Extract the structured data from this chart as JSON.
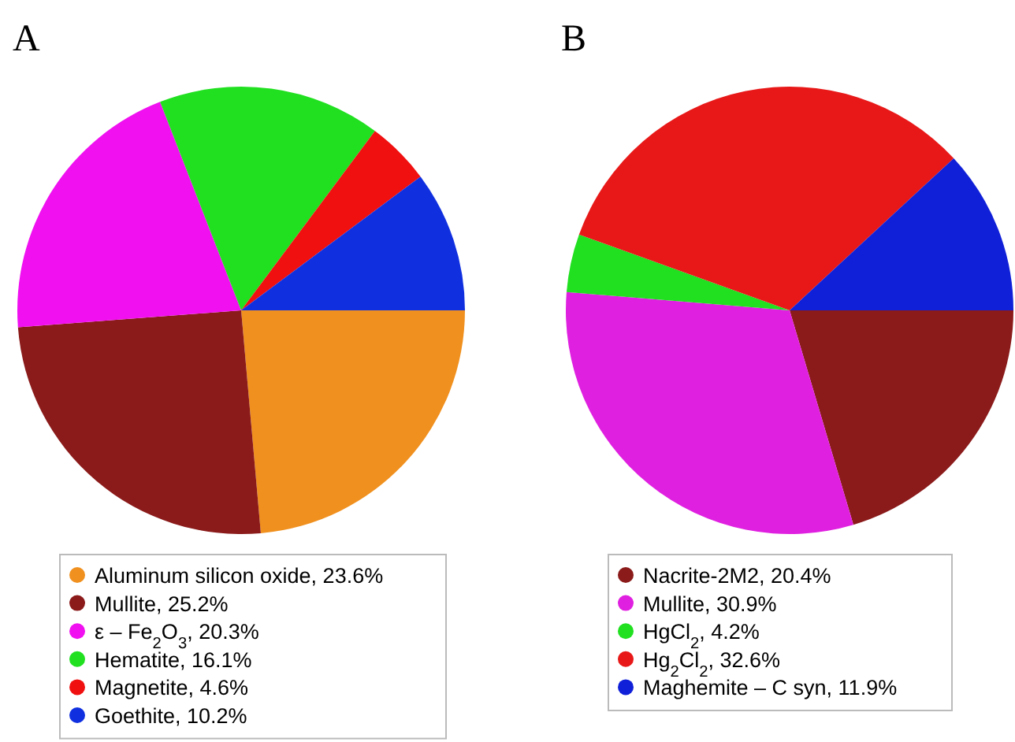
{
  "chart_data": [
    {
      "type": "pie",
      "title": "A",
      "categories": [
        "Aluminum silicon oxide, 23.6%",
        "Mullite, 25.2%",
        "ε – Fe$_{2}$O$_{3}$, 20.3%",
        "Hematite, 16.1%",
        "Magnetite, 4.6%",
        "Goethite, 10.2%"
      ],
      "values": [
        23.6,
        25.2,
        20.3,
        16.1,
        4.6,
        10.2
      ],
      "colors": [
        "#f0901e",
        "#8b1a1a",
        "#f010f0",
        "#20e020",
        "#f01010",
        "#1030e0"
      ],
      "legend": "bottom"
    },
    {
      "type": "pie",
      "title": "B",
      "categories": [
        "Nacrite-2M2, 20.4%",
        "Mullite, 30.9%",
        "HgCl$_{2}$, 4.2%",
        "Hg$_{2}$Cl$_{2}$, 32.6%",
        "Maghemite – C syn, 11.9%"
      ],
      "values": [
        20.4,
        30.9,
        4.2,
        32.6,
        11.9
      ],
      "colors": [
        "#8b1a1a",
        "#e020e0",
        "#20e020",
        "#e81818",
        "#1020d8"
      ],
      "legend": "bottom"
    }
  ]
}
